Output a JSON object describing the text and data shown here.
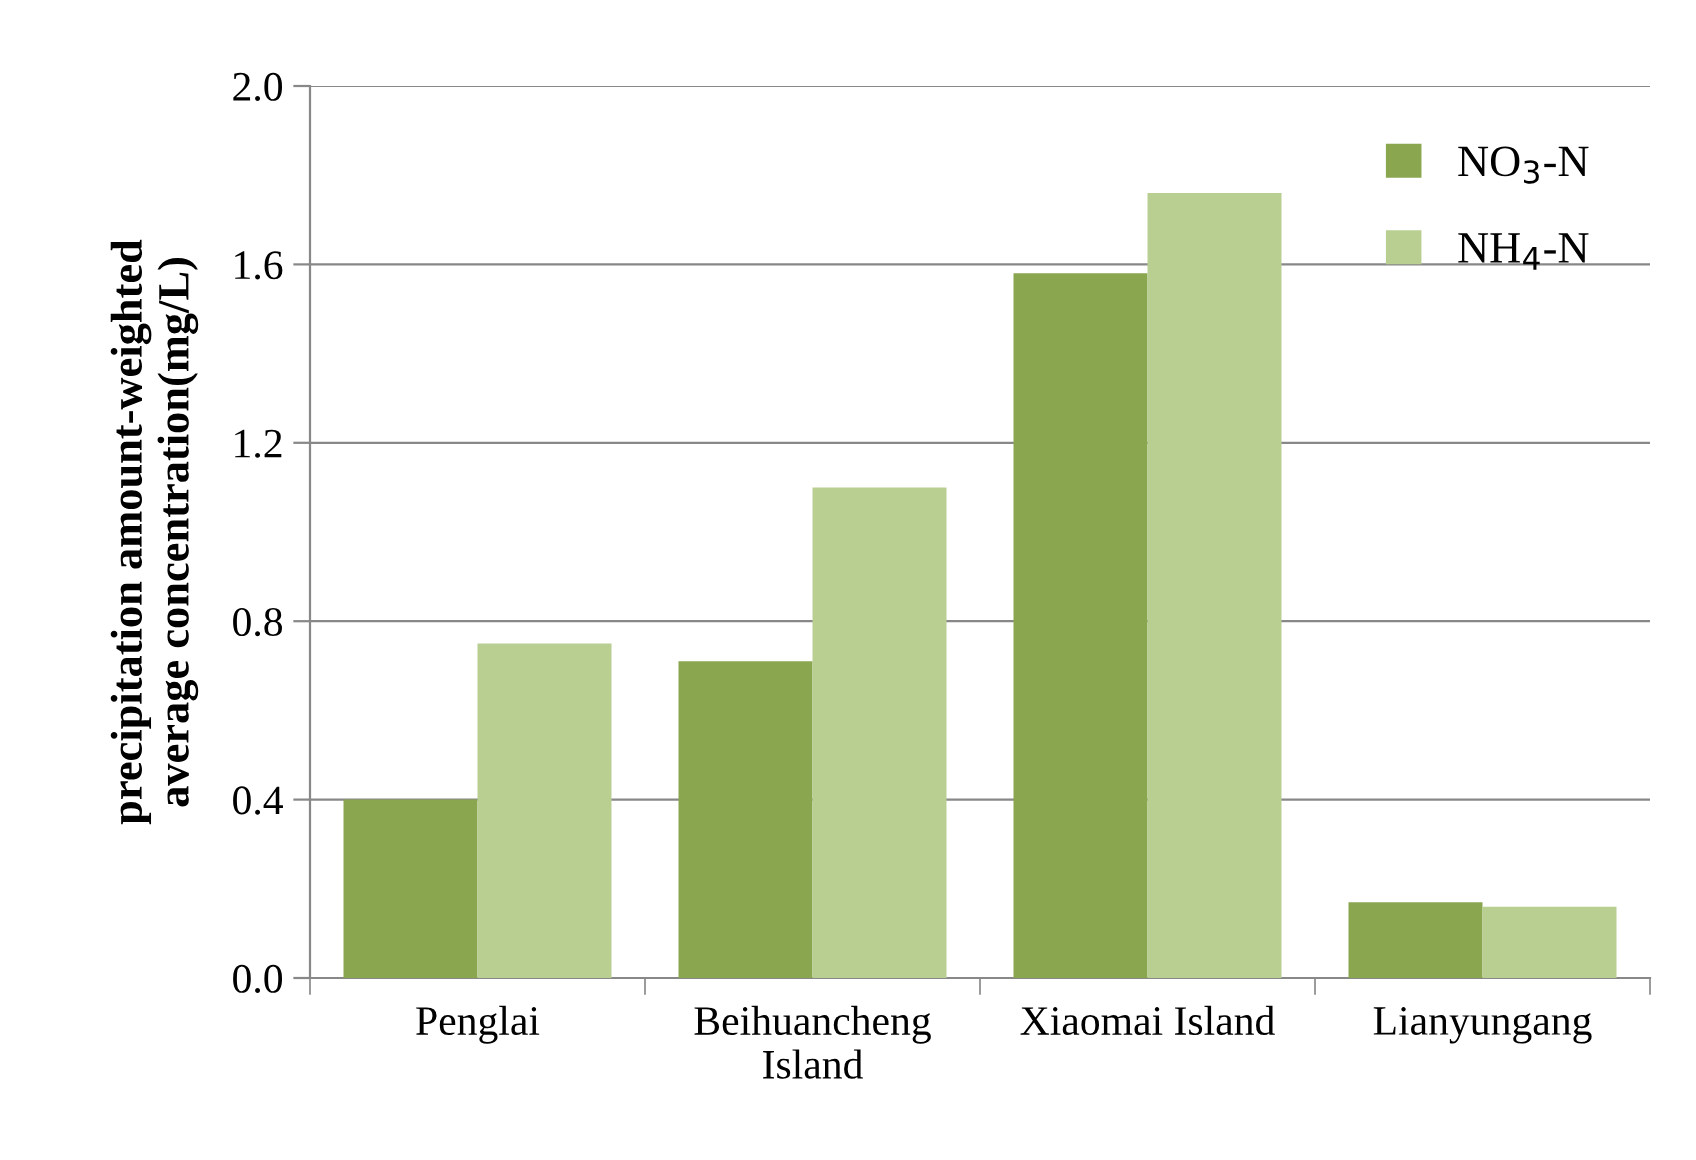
{
  "chart_data": {
    "type": "bar",
    "ylabel": "precipitation amount-weighted\naverage concentration(mg/L)",
    "categories": [
      "Penglai",
      "Beihuancheng\nIsland",
      "Xiaomai Island",
      "Lianyungang"
    ],
    "series": [
      {
        "name": "NO$_{3}$-N",
        "color": "#8aa64e",
        "values": [
          0.4,
          0.71,
          1.58,
          0.17
        ]
      },
      {
        "name": "NH$_{4}$-N",
        "color": "#b8cf91",
        "values": [
          0.75,
          1.1,
          1.76,
          0.16
        ]
      }
    ],
    "ylim": [
      0,
      2.0
    ],
    "yticks": [
      {
        "value": 0,
        "label": "0.0"
      },
      {
        "value": 0.4,
        "label": "0.4"
      },
      {
        "value": 0.8,
        "label": "0.8"
      },
      {
        "value": 1.2,
        "label": "1.2"
      },
      {
        "value": 1.6,
        "label": "1.6"
      },
      {
        "value": 2.0,
        "label": "2.0"
      }
    ],
    "grid": "y",
    "legend": "top right"
  }
}
